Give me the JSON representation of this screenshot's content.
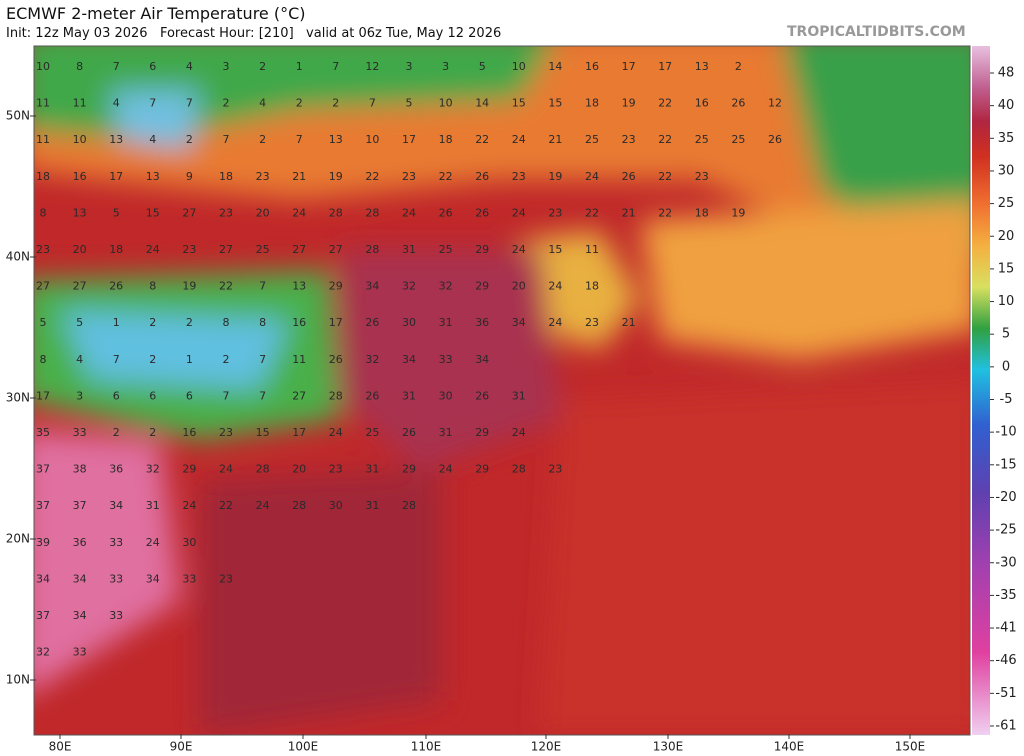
{
  "header": {
    "title": "ECMWF 2-meter Air Temperature (°C)",
    "subtitle": "Init: 12z May 03 2026   Forecast Hour: [210]   valid at 06z Tue, May 12 2026",
    "credit": "TROPICALTIDBITS.COM"
  },
  "map": {
    "lat_labels": [
      "50N",
      "40N",
      "30N",
      "20N",
      "10N"
    ],
    "lon_labels": [
      "80E",
      "90E",
      "100E",
      "110E",
      "120E",
      "130E",
      "140E",
      "150E"
    ],
    "temperature_rows": [
      [
        10,
        8,
        7,
        6,
        4,
        3,
        2,
        1,
        7,
        12,
        3,
        3,
        5,
        10,
        14,
        16,
        17,
        17,
        13,
        2
      ],
      [
        11,
        11,
        4,
        7,
        7,
        2,
        4,
        2,
        2,
        7,
        5,
        10,
        14,
        15,
        15,
        18,
        19,
        22,
        16,
        26,
        12
      ],
      [
        11,
        10,
        13,
        4,
        2,
        7,
        2,
        7,
        13,
        10,
        17,
        18,
        22,
        24,
        21,
        25,
        23,
        22,
        25,
        25,
        26
      ],
      [
        18,
        16,
        17,
        13,
        9,
        18,
        23,
        21,
        19,
        22,
        23,
        22,
        26,
        23,
        19,
        24,
        26,
        22,
        23
      ],
      [
        8,
        13,
        5,
        15,
        27,
        23,
        20,
        24,
        28,
        28,
        24,
        26,
        26,
        24,
        23,
        22,
        21,
        22,
        18,
        19
      ],
      [
        23,
        20,
        18,
        24,
        23,
        27,
        25,
        27,
        27,
        28,
        31,
        25,
        29,
        24,
        15,
        11
      ],
      [
        27,
        27,
        26,
        8,
        19,
        22,
        7,
        13,
        29,
        34,
        32,
        32,
        29,
        20,
        24,
        18
      ],
      [
        5,
        5,
        1,
        2,
        2,
        8,
        8,
        16,
        17,
        26,
        30,
        31,
        36,
        34,
        24,
        23,
        21
      ],
      [
        8,
        4,
        7,
        2,
        1,
        2,
        7,
        11,
        26,
        32,
        34,
        33,
        34
      ],
      [
        17,
        3,
        6,
        6,
        6,
        7,
        7,
        27,
        28,
        26,
        31,
        30,
        26,
        31
      ],
      [
        35,
        33,
        2,
        2,
        16,
        23,
        15,
        17,
        24,
        25,
        26,
        31,
        29,
        24
      ],
      [
        37,
        38,
        36,
        32,
        29,
        24,
        28,
        20,
        23,
        31,
        29,
        24,
        29,
        28,
        23
      ],
      [
        37,
        37,
        34,
        31,
        24,
        22,
        24,
        28,
        30,
        31,
        28
      ],
      [
        39,
        36,
        33,
        24,
        30
      ],
      [
        34,
        34,
        33,
        34,
        33,
        23
      ],
      [
        37,
        34,
        33
      ],
      [
        32,
        33
      ]
    ]
  },
  "colorbar": {
    "ticks": [
      48,
      40,
      35,
      30,
      25,
      20,
      15,
      10,
      5,
      0,
      -5,
      -10,
      -15,
      -20,
      -25,
      -30,
      -35,
      -41,
      -46,
      -51,
      -61
    ]
  }
}
